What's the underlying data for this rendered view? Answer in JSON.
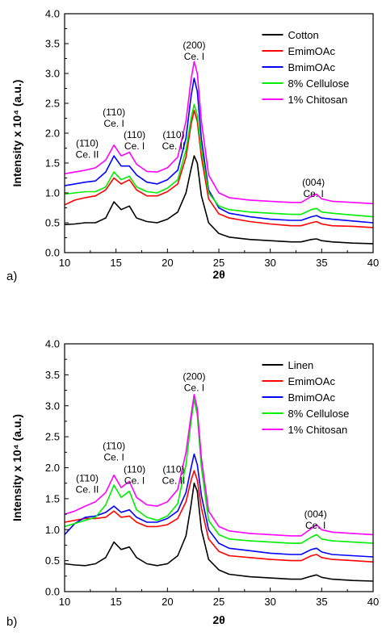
{
  "chart_data": [
    {
      "panel_label": "a)",
      "type": "line",
      "xlabel": "2θ",
      "ylabel": "Intensity x 10⁴ (a.u.)",
      "xlim": [
        10,
        40
      ],
      "ylim": [
        0.0,
        4.0
      ],
      "xticks": [
        10,
        15,
        20,
        25,
        30,
        35,
        40
      ],
      "yticks": [
        "0.0",
        "0.5",
        "1.0",
        "1.5",
        "2.0",
        "2.5",
        "3.0",
        "3.5",
        "4.0"
      ],
      "legend_position": "top-right",
      "annotations": [
        {
          "lines": [
            "(1̄10)",
            "Ce. II"
          ],
          "x": 12.2,
          "y": 1.78
        },
        {
          "lines": [
            "(1̄10)",
            "Ce. I"
          ],
          "x": 14.8,
          "y": 2.3
        },
        {
          "lines": [
            "(110)",
            "Ce. I"
          ],
          "x": 16.8,
          "y": 1.92
        },
        {
          "lines": [
            "(110)",
            "Ce. II"
          ],
          "x": 20.6,
          "y": 1.92
        },
        {
          "lines": [
            "(200)",
            "Ce. I"
          ],
          "x": 22.6,
          "y": 3.42
        },
        {
          "lines": [
            "(004)",
            "Ce. I"
          ],
          "x": 34.2,
          "y": 1.12
        }
      ],
      "series": [
        {
          "name": "Cotton",
          "color": "#000000",
          "x": [
            10,
            11,
            12,
            13,
            14,
            14.8,
            15.5,
            16.3,
            17,
            18,
            19,
            20,
            21,
            21.8,
            22.3,
            22.6,
            22.9,
            23.3,
            24,
            25,
            26,
            28,
            30,
            32,
            33,
            34,
            34.5,
            35,
            36,
            38,
            40
          ],
          "y": [
            0.47,
            0.48,
            0.5,
            0.5,
            0.58,
            0.85,
            0.72,
            0.78,
            0.58,
            0.52,
            0.5,
            0.56,
            0.68,
            1.0,
            1.4,
            1.62,
            1.5,
            0.95,
            0.5,
            0.32,
            0.26,
            0.22,
            0.2,
            0.18,
            0.18,
            0.22,
            0.23,
            0.2,
            0.18,
            0.16,
            0.15
          ]
        },
        {
          "name": "EmimOAc",
          "color": "#ff0000",
          "x": [
            10,
            11,
            12,
            13,
            14,
            14.8,
            15.5,
            16.3,
            17,
            18,
            19,
            20,
            21,
            21.8,
            22.3,
            22.6,
            22.9,
            23.3,
            24,
            25,
            26,
            28,
            30,
            32,
            33,
            34,
            34.5,
            35,
            36,
            38,
            40
          ],
          "y": [
            0.8,
            0.88,
            0.92,
            0.95,
            1.05,
            1.25,
            1.15,
            1.22,
            1.05,
            0.95,
            0.95,
            1.02,
            1.15,
            1.6,
            2.15,
            2.38,
            2.2,
            1.6,
            0.9,
            0.65,
            0.58,
            0.52,
            0.48,
            0.45,
            0.45,
            0.5,
            0.52,
            0.48,
            0.45,
            0.44,
            0.42
          ]
        },
        {
          "name": "BmimOAc",
          "color": "#0000ff",
          "x": [
            10,
            11,
            12,
            13,
            14,
            14.8,
            15.5,
            16.3,
            17,
            18,
            19,
            20,
            21,
            21.8,
            22.3,
            22.6,
            22.9,
            23.3,
            24,
            25,
            26,
            28,
            30,
            32,
            33,
            34,
            34.5,
            35,
            36,
            38,
            40
          ],
          "y": [
            1.12,
            1.15,
            1.18,
            1.2,
            1.35,
            1.62,
            1.45,
            1.45,
            1.3,
            1.18,
            1.15,
            1.22,
            1.38,
            1.92,
            2.62,
            2.92,
            2.7,
            1.9,
            1.05,
            0.75,
            0.66,
            0.6,
            0.56,
            0.54,
            0.54,
            0.6,
            0.62,
            0.58,
            0.56,
            0.53,
            0.5
          ]
        },
        {
          "name": "8% Cellulose",
          "color": "#00ee00",
          "x": [
            10,
            11,
            12,
            13,
            14,
            14.8,
            15.5,
            16.3,
            17,
            18,
            19,
            20,
            21,
            21.8,
            22.3,
            22.6,
            22.9,
            23.3,
            24,
            25,
            26,
            28,
            30,
            32,
            33,
            34,
            34.5,
            35,
            36,
            38,
            40
          ],
          "y": [
            0.98,
            1.0,
            1.02,
            1.02,
            1.1,
            1.35,
            1.22,
            1.28,
            1.1,
            1.02,
            1.0,
            1.08,
            1.22,
            1.72,
            2.25,
            2.48,
            2.3,
            1.72,
            1.0,
            0.78,
            0.72,
            0.68,
            0.66,
            0.64,
            0.64,
            0.72,
            0.74,
            0.68,
            0.66,
            0.63,
            0.6
          ]
        },
        {
          "name": "1% Chitosan",
          "color": "#ff00ff",
          "x": [
            10,
            11,
            12,
            13,
            14,
            14.8,
            15.5,
            16.3,
            17,
            18,
            19,
            20,
            21,
            21.8,
            22.3,
            22.6,
            22.9,
            23.3,
            24,
            25,
            26,
            28,
            30,
            32,
            33,
            34,
            34.5,
            35,
            36,
            38,
            40
          ],
          "y": [
            1.32,
            1.35,
            1.38,
            1.42,
            1.55,
            1.8,
            1.62,
            1.68,
            1.48,
            1.36,
            1.35,
            1.42,
            1.6,
            2.2,
            2.9,
            3.2,
            3.0,
            2.2,
            1.3,
            1.0,
            0.92,
            0.88,
            0.86,
            0.84,
            0.84,
            0.94,
            0.98,
            0.9,
            0.86,
            0.84,
            0.82
          ]
        }
      ]
    },
    {
      "panel_label": "b)",
      "type": "line",
      "xlabel": "2θ",
      "ylabel": "Intensity x 10⁴ (a.u.)",
      "xlim": [
        10,
        40
      ],
      "ylim": [
        0.0,
        4.0
      ],
      "xticks": [
        10,
        15,
        20,
        25,
        30,
        35,
        40
      ],
      "yticks": [
        "0.0",
        "0.5",
        "1.0",
        "1.5",
        "2.0",
        "2.5",
        "3.0",
        "3.5",
        "4.0"
      ],
      "legend_position": "top-right",
      "annotations": [
        {
          "lines": [
            "(1̄10)",
            "Ce. II"
          ],
          "x": 12.2,
          "y": 1.78
        },
        {
          "lines": [
            "(1̄10)",
            "Ce. I"
          ],
          "x": 14.8,
          "y": 2.3
        },
        {
          "lines": [
            "(110)",
            "Ce. I"
          ],
          "x": 16.8,
          "y": 1.92
        },
        {
          "lines": [
            "(110)",
            "Ce. II"
          ],
          "x": 20.6,
          "y": 1.92
        },
        {
          "lines": [
            "(200)",
            "Ce. I"
          ],
          "x": 22.6,
          "y": 3.42
        },
        {
          "lines": [
            "(004)",
            "Ce. I"
          ],
          "x": 34.4,
          "y": 1.2
        }
      ],
      "series": [
        {
          "name": "Linen",
          "color": "#000000",
          "x": [
            10,
            11,
            12,
            13,
            14,
            14.8,
            15.5,
            16.3,
            17,
            18,
            19,
            20,
            21,
            21.8,
            22.3,
            22.6,
            22.9,
            23.3,
            24,
            25,
            26,
            28,
            30,
            32,
            33,
            34,
            34.5,
            35,
            36,
            38,
            40
          ],
          "y": [
            0.45,
            0.43,
            0.42,
            0.45,
            0.55,
            0.8,
            0.68,
            0.72,
            0.55,
            0.45,
            0.42,
            0.45,
            0.58,
            0.9,
            1.4,
            1.75,
            1.62,
            1.0,
            0.52,
            0.35,
            0.28,
            0.24,
            0.22,
            0.2,
            0.2,
            0.25,
            0.27,
            0.23,
            0.2,
            0.18,
            0.17
          ]
        },
        {
          "name": "EmimOAc",
          "color": "#ff0000",
          "x": [
            10,
            11,
            12,
            13,
            14,
            14.8,
            15.5,
            16.3,
            17,
            18,
            19,
            20,
            21,
            21.8,
            22.3,
            22.6,
            22.9,
            23.3,
            24,
            25,
            26,
            28,
            30,
            32,
            33,
            34,
            34.5,
            35,
            36,
            38,
            40
          ],
          "y": [
            1.12,
            1.15,
            1.18,
            1.18,
            1.2,
            1.3,
            1.2,
            1.22,
            1.12,
            1.05,
            1.05,
            1.08,
            1.18,
            1.45,
            1.8,
            1.95,
            1.8,
            1.35,
            0.85,
            0.65,
            0.58,
            0.55,
            0.52,
            0.5,
            0.5,
            0.58,
            0.6,
            0.55,
            0.52,
            0.5,
            0.48
          ]
        },
        {
          "name": "BmimOAc",
          "color": "#0000ff",
          "x": [
            10,
            11,
            12,
            13,
            14,
            14.8,
            15.5,
            16.3,
            17,
            18,
            19,
            20,
            21,
            21.8,
            22.3,
            22.6,
            22.9,
            23.3,
            24,
            25,
            26,
            28,
            30,
            32,
            33,
            34,
            34.5,
            35,
            36,
            38,
            40
          ],
          "y": [
            0.92,
            1.1,
            1.2,
            1.22,
            1.28,
            1.38,
            1.28,
            1.32,
            1.2,
            1.12,
            1.12,
            1.18,
            1.3,
            1.6,
            2.0,
            2.22,
            2.05,
            1.55,
            1.0,
            0.78,
            0.7,
            0.66,
            0.62,
            0.6,
            0.6,
            0.68,
            0.7,
            0.64,
            0.6,
            0.58,
            0.56
          ]
        },
        {
          "name": "8% Cellulose",
          "color": "#00ee00",
          "x": [
            10,
            11,
            12,
            13,
            14,
            14.8,
            15.5,
            16.3,
            17,
            18,
            19,
            20,
            21,
            21.8,
            22.3,
            22.6,
            22.9,
            23.3,
            24,
            25,
            26,
            28,
            30,
            32,
            33,
            34,
            34.5,
            35,
            36,
            38,
            40
          ],
          "y": [
            1.05,
            1.1,
            1.15,
            1.2,
            1.4,
            1.72,
            1.52,
            1.62,
            1.32,
            1.2,
            1.15,
            1.22,
            1.42,
            2.05,
            2.75,
            3.1,
            2.85,
            2.0,
            1.15,
            0.92,
            0.85,
            0.82,
            0.8,
            0.78,
            0.78,
            0.88,
            0.92,
            0.85,
            0.82,
            0.8,
            0.78
          ]
        },
        {
          "name": "1% Chitosan",
          "color": "#ff00ff",
          "x": [
            10,
            11,
            12,
            13,
            14,
            14.8,
            15.5,
            16.3,
            17,
            18,
            19,
            20,
            21,
            21.8,
            22.3,
            22.6,
            22.9,
            23.3,
            24,
            25,
            26,
            28,
            30,
            32,
            33,
            34,
            34.5,
            35,
            36,
            38,
            40
          ],
          "y": [
            1.25,
            1.3,
            1.38,
            1.45,
            1.6,
            1.88,
            1.68,
            1.78,
            1.52,
            1.4,
            1.38,
            1.45,
            1.65,
            2.25,
            2.85,
            3.18,
            2.95,
            2.15,
            1.3,
            1.05,
            0.98,
            0.94,
            0.92,
            0.9,
            0.9,
            1.02,
            1.08,
            1.0,
            0.96,
            0.94,
            0.92
          ]
        }
      ]
    }
  ]
}
